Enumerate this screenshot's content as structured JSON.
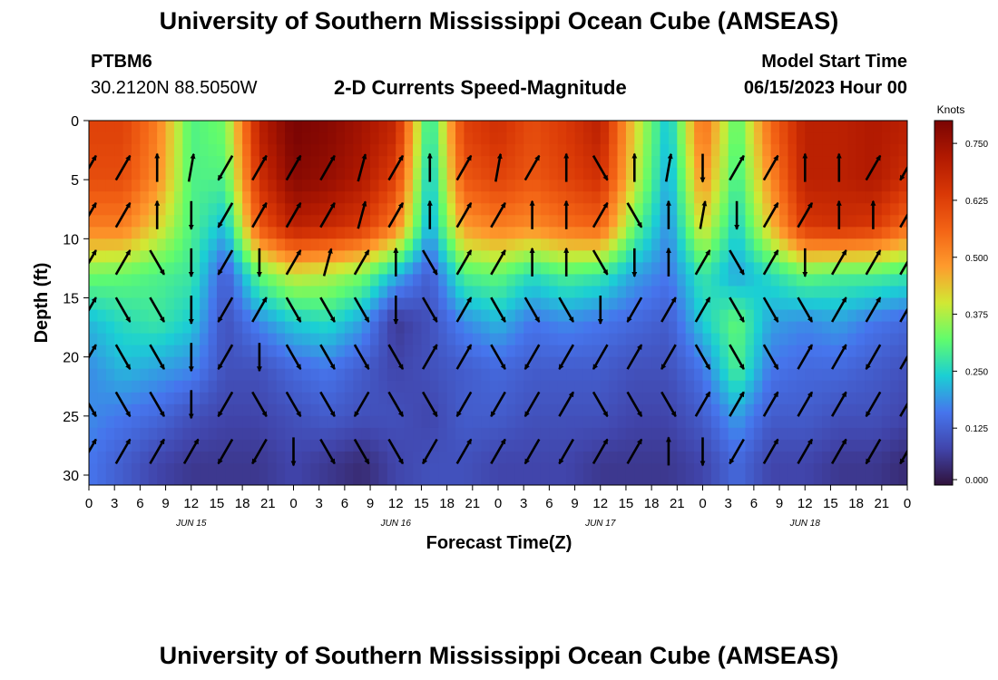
{
  "header": {
    "title": "University of Southern Mississippi Ocean Cube (AMSEAS)",
    "station_id": "PTBM6",
    "station_coords": "30.2120N  88.5050W",
    "subtitle": "2-D Currents Speed-Magnitude",
    "model_start_label": "Model Start Time",
    "model_start_value": "06/15/2023 Hour 00"
  },
  "footer": {
    "title": "University of Southern Mississippi Ocean Cube (AMSEAS)"
  },
  "chart_data": {
    "type": "heatmap",
    "title": "2-D Currents Speed-Magnitude",
    "xlabel": "Forecast Time(Z)",
    "ylabel": "Depth (ft)",
    "x_hours_range": [
      0,
      96
    ],
    "x_tick_labels": [
      "0",
      "3",
      "6",
      "9",
      "12",
      "15",
      "18",
      "21",
      "0",
      "3",
      "6",
      "9",
      "12",
      "15",
      "18",
      "21",
      "0",
      "3",
      "6",
      "9",
      "12",
      "15",
      "18",
      "21",
      "0",
      "3",
      "6",
      "9",
      "12",
      "15",
      "18",
      "21",
      "0"
    ],
    "day_labels": [
      {
        "label": "JUN 15",
        "hour": 12
      },
      {
        "label": "JUN 16",
        "hour": 36
      },
      {
        "label": "JUN 17",
        "hour": 60
      },
      {
        "label": "JUN 18",
        "hour": 84
      }
    ],
    "y_range": [
      0,
      31
    ],
    "y_ticks": [
      0,
      5,
      10,
      15,
      20,
      25,
      30
    ],
    "y_tick_labels": [
      "0",
      "5",
      "10",
      "15",
      "20",
      "25",
      "30"
    ],
    "colorbar": {
      "unit_label": "Knots",
      "range": [
        0,
        0.8
      ],
      "ticks": [
        "0.000",
        "0.125",
        "0.250",
        "0.375",
        "0.500",
        "0.625",
        "0.750"
      ],
      "tick_values": [
        0,
        0.125,
        0.25,
        0.375,
        0.5,
        0.625,
        0.75
      ]
    },
    "speed_columns_hours": [
      0,
      4,
      8,
      12,
      16,
      20,
      24,
      28,
      32,
      36,
      40,
      44,
      48,
      52,
      56,
      60,
      64,
      68,
      72,
      76,
      80,
      84,
      88,
      92,
      96
    ],
    "speed_rows_depth": [
      1,
      5,
      9,
      13,
      17,
      21,
      25,
      29
    ],
    "speed_grid": [
      [
        0.62,
        0.62,
        0.52,
        0.3,
        0.33,
        0.7,
        0.8,
        0.78,
        0.74,
        0.68,
        0.25,
        0.62,
        0.66,
        0.6,
        0.64,
        0.7,
        0.42,
        0.22,
        0.55,
        0.3,
        0.55,
        0.7,
        0.7,
        0.72,
        0.7
      ],
      [
        0.6,
        0.6,
        0.5,
        0.3,
        0.3,
        0.66,
        0.78,
        0.76,
        0.72,
        0.62,
        0.22,
        0.58,
        0.62,
        0.58,
        0.62,
        0.66,
        0.4,
        0.2,
        0.5,
        0.28,
        0.5,
        0.7,
        0.7,
        0.72,
        0.66
      ],
      [
        0.52,
        0.52,
        0.42,
        0.3,
        0.22,
        0.58,
        0.7,
        0.68,
        0.64,
        0.52,
        0.2,
        0.48,
        0.52,
        0.5,
        0.54,
        0.56,
        0.32,
        0.18,
        0.42,
        0.24,
        0.44,
        0.64,
        0.66,
        0.64,
        0.55
      ],
      [
        0.33,
        0.32,
        0.3,
        0.28,
        0.12,
        0.32,
        0.4,
        0.38,
        0.34,
        0.22,
        0.12,
        0.3,
        0.32,
        0.26,
        0.3,
        0.28,
        0.2,
        0.16,
        0.28,
        0.2,
        0.26,
        0.32,
        0.3,
        0.3,
        0.28
      ],
      [
        0.22,
        0.26,
        0.28,
        0.24,
        0.1,
        0.18,
        0.24,
        0.26,
        0.2,
        0.06,
        0.1,
        0.18,
        0.22,
        0.16,
        0.18,
        0.16,
        0.14,
        0.12,
        0.24,
        0.32,
        0.2,
        0.18,
        0.2,
        0.16,
        0.14
      ],
      [
        0.18,
        0.22,
        0.2,
        0.18,
        0.1,
        0.1,
        0.14,
        0.16,
        0.12,
        0.08,
        0.1,
        0.12,
        0.14,
        0.12,
        0.12,
        0.12,
        0.1,
        0.1,
        0.16,
        0.3,
        0.16,
        0.14,
        0.14,
        0.12,
        0.1
      ],
      [
        0.18,
        0.16,
        0.14,
        0.1,
        0.08,
        0.08,
        0.1,
        0.12,
        0.1,
        0.1,
        0.08,
        0.12,
        0.12,
        0.1,
        0.1,
        0.1,
        0.08,
        0.08,
        0.12,
        0.2,
        0.12,
        0.12,
        0.1,
        0.1,
        0.08
      ],
      [
        0.16,
        0.12,
        0.08,
        0.06,
        0.06,
        0.06,
        0.08,
        0.06,
        0.04,
        0.08,
        0.1,
        0.1,
        0.08,
        0.08,
        0.08,
        0.06,
        0.06,
        0.06,
        0.08,
        0.14,
        0.08,
        0.08,
        0.06,
        0.06,
        0.04
      ]
    ],
    "arrow_hours": [
      0,
      4,
      8,
      12,
      16,
      20,
      24,
      28,
      32,
      36,
      40,
      44,
      48,
      52,
      56,
      60,
      64,
      68,
      72,
      76,
      80,
      84,
      88,
      92,
      96
    ],
    "arrow_depths": [
      4,
      8,
      12,
      16,
      20,
      24,
      28
    ],
    "arrow_directions_deg": [
      [
        60,
        60,
        90,
        80,
        240,
        60,
        60,
        60,
        75,
        60,
        90,
        60,
        80,
        60,
        90,
        300,
        90,
        80,
        270,
        60,
        60,
        90,
        90,
        60,
        240
      ],
      [
        60,
        60,
        90,
        270,
        240,
        60,
        60,
        60,
        75,
        60,
        90,
        60,
        60,
        90,
        90,
        60,
        300,
        90,
        80,
        270,
        60,
        60,
        90,
        90,
        60
      ],
      [
        60,
        60,
        300,
        270,
        240,
        270,
        60,
        75,
        60,
        90,
        300,
        60,
        60,
        90,
        90,
        300,
        270,
        90,
        60,
        300,
        60,
        270,
        60,
        60,
        60
      ],
      [
        60,
        300,
        300,
        270,
        240,
        60,
        300,
        300,
        300,
        270,
        300,
        60,
        300,
        300,
        300,
        270,
        240,
        60,
        60,
        300,
        300,
        300,
        60,
        60,
        60
      ],
      [
        60,
        300,
        300,
        270,
        240,
        270,
        300,
        300,
        300,
        300,
        60,
        60,
        300,
        240,
        240,
        240,
        60,
        240,
        300,
        300,
        300,
        60,
        60,
        240,
        60
      ],
      [
        300,
        300,
        300,
        270,
        240,
        300,
        300,
        300,
        240,
        300,
        300,
        240,
        240,
        240,
        60,
        300,
        300,
        300,
        60,
        60,
        60,
        60,
        60,
        240,
        60
      ],
      [
        60,
        60,
        60,
        60,
        240,
        240,
        270,
        300,
        300,
        300,
        240,
        60,
        60,
        240,
        240,
        60,
        60,
        90,
        270,
        240,
        60,
        60,
        60,
        240,
        240
      ]
    ]
  }
}
